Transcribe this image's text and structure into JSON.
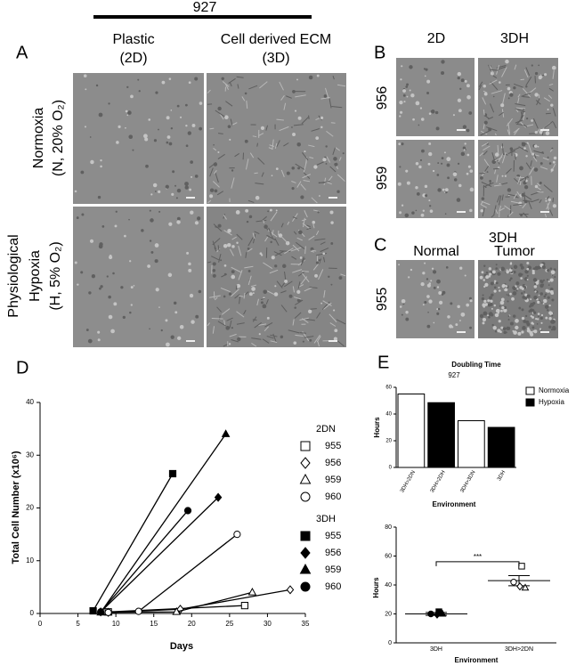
{
  "header": {
    "title": "927"
  },
  "panel_a": {
    "label": "A",
    "columns": [
      [
        "Plastic",
        "(2D)"
      ],
      [
        "Cell derived ECM",
        "(3D)"
      ]
    ],
    "rows": [
      [
        "Normoxia",
        "(N, 20% O₂)"
      ],
      [
        "Physiological",
        "Hypoxia",
        "(H, 5% O₂)"
      ]
    ]
  },
  "panel_b": {
    "label": "B",
    "columns": [
      "2D",
      "3DH"
    ],
    "rows": [
      "956",
      "959"
    ]
  },
  "panel_c": {
    "label": "C",
    "title": "3DH",
    "columns": [
      "Normal",
      "Tumor"
    ],
    "rows": [
      "955"
    ]
  },
  "chart_data": [
    {
      "type": "line",
      "label": "D",
      "xlabel": "Days",
      "ylabel": "Total Cell Number (x10⁶)",
      "xlim": [
        0,
        35
      ],
      "xticks": [
        0,
        5,
        10,
        15,
        20,
        25,
        30,
        35
      ],
      "ylim": [
        0,
        40
      ],
      "yticks": [
        0,
        10,
        20,
        30,
        40
      ],
      "color": "#000000",
      "series": [
        {
          "name": "955",
          "group": "2DN",
          "marker": "square",
          "filled": false,
          "x": [
            9,
            27
          ],
          "values": [
            0.3,
            1.5
          ]
        },
        {
          "name": "956",
          "group": "2DN",
          "marker": "diamond",
          "filled": false,
          "x": [
            9,
            18.5,
            33
          ],
          "values": [
            0.2,
            0.8,
            4.5
          ]
        },
        {
          "name": "959",
          "group": "2DN",
          "marker": "triangle",
          "filled": false,
          "x": [
            9,
            18,
            28
          ],
          "values": [
            0.2,
            0.3,
            4
          ]
        },
        {
          "name": "960",
          "group": "2DN",
          "marker": "circle",
          "filled": false,
          "x": [
            9,
            13,
            26
          ],
          "values": [
            0.2,
            0.4,
            15
          ]
        },
        {
          "name": "955",
          "group": "3DH",
          "marker": "square",
          "filled": true,
          "x": [
            7,
            17.5
          ],
          "values": [
            0.5,
            26.5
          ]
        },
        {
          "name": "956",
          "group": "3DH",
          "marker": "diamond",
          "filled": true,
          "x": [
            8,
            23.5
          ],
          "values": [
            0.3,
            22
          ]
        },
        {
          "name": "959",
          "group": "3DH",
          "marker": "triangle",
          "filled": true,
          "x": [
            8,
            24.5
          ],
          "values": [
            0.2,
            34
          ]
        },
        {
          "name": "960",
          "group": "3DH",
          "marker": "circle",
          "filled": true,
          "x": [
            8,
            19.5
          ],
          "values": [
            0.3,
            19.5
          ]
        }
      ]
    },
    {
      "type": "bar",
      "label": "E",
      "title": "Doubling Time",
      "annotation": "927",
      "xlabel": "Environment",
      "ylabel": "Hours",
      "categories": [
        "3DH>2DN",
        "3DH>2DH",
        "3DH>3DN",
        "3DH"
      ],
      "series": [
        {
          "name": "Normoxia",
          "color": "#ffffff",
          "values": [
            55,
            null,
            35,
            null
          ]
        },
        {
          "name": "Hypoxia",
          "color": "#000000",
          "values": [
            null,
            48.5,
            null,
            30
          ]
        }
      ],
      "ylim": [
        0,
        60
      ],
      "yticks": [
        0,
        20,
        40,
        60
      ]
    },
    {
      "type": "scatter",
      "xlabel": "Environment",
      "ylabel": "Hours",
      "annotation": "***",
      "categories": [
        "3DH",
        "3DH>2DN"
      ],
      "filled": [
        true,
        false
      ],
      "ylim": [
        0,
        80
      ],
      "yticks": [
        0,
        20,
        40,
        60,
        80
      ],
      "series": [
        {
          "marker": "circle",
          "values": [
            20,
            42
          ]
        },
        {
          "marker": "diamond",
          "values": [
            19.5,
            39
          ]
        },
        {
          "marker": "triangle",
          "values": [
            20,
            38
          ]
        },
        {
          "marker": "square",
          "values": [
            21.5,
            53
          ]
        }
      ],
      "means": [
        20,
        43
      ],
      "errors": [
        1,
        3.5
      ]
    }
  ]
}
